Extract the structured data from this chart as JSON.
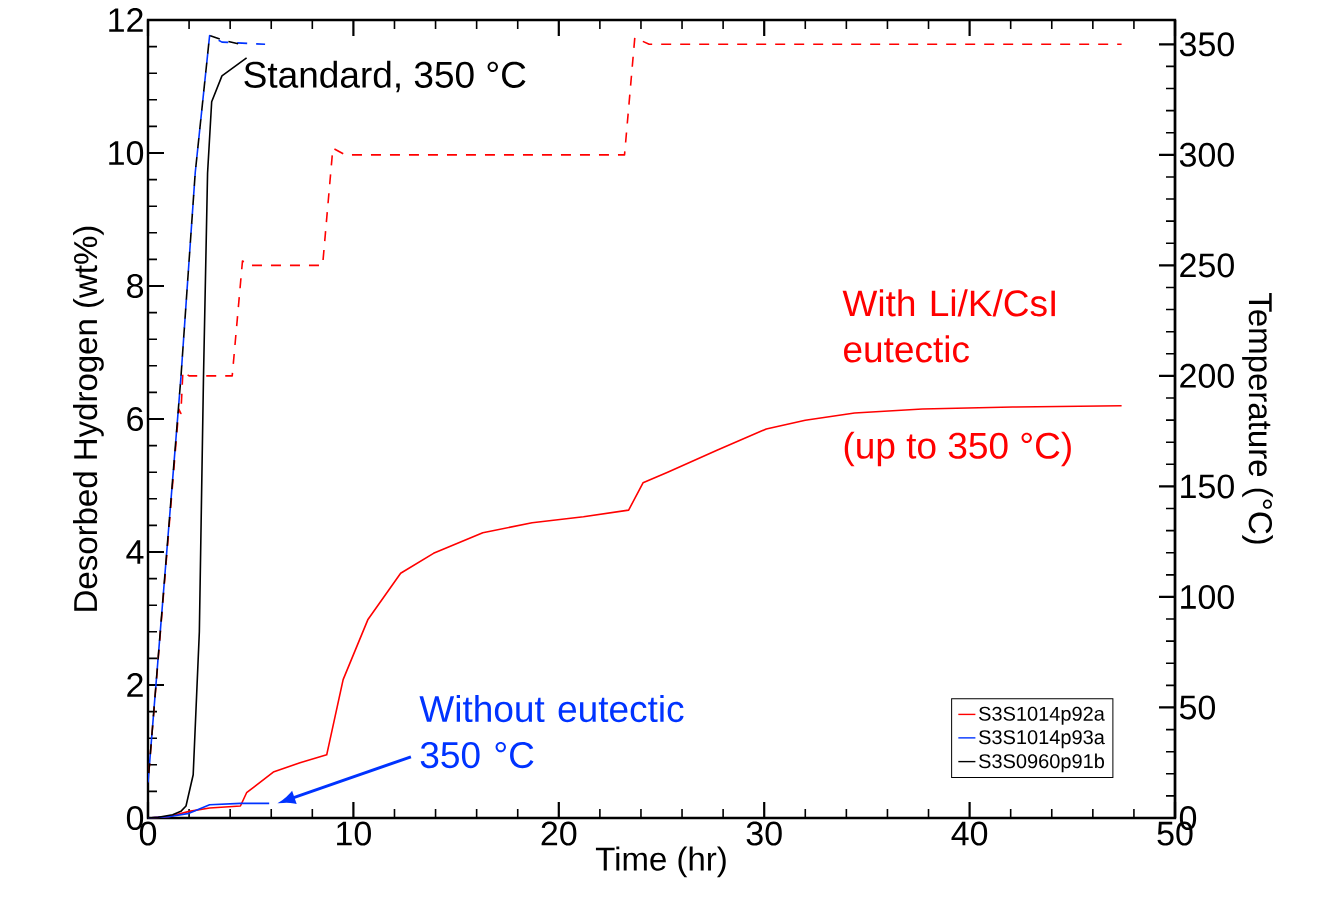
{
  "chart_data": {
    "type": "line",
    "xlabel": "Time  (hr)",
    "ylabel": "Desorbed Hydrogen   (wt%)",
    "y2label": "Temperature   (°C)",
    "xlim": [
      0,
      50
    ],
    "xticks": [
      0,
      10,
      20,
      30,
      40,
      50
    ],
    "ylim": [
      0,
      12
    ],
    "yticks": [
      0,
      2,
      4,
      6,
      8,
      10,
      12
    ],
    "y2lim": [
      0,
      361
    ],
    "y2ticks": [
      0,
      50,
      100,
      150,
      200,
      250,
      300,
      350
    ],
    "legend": "bottom right",
    "marker": "none",
    "annotations": [
      "Standard, 350 °C",
      "With Li/K/CsI eutectic",
      "(up to 350 °C)",
      "Without eutectic 350 °C"
    ],
    "series": [
      {
        "name": "S3S1014p92a",
        "color": "#ff0000",
        "x": [
          0,
          1,
          2,
          3,
          4.5,
          4.8,
          6.1,
          7.4,
          8.7,
          9.5,
          10.7,
          12.3,
          13.9,
          16.3,
          18.7,
          21.2,
          23.4,
          24.1,
          25.3,
          27.7,
          30.1,
          32,
          34.4,
          37.7,
          42.1,
          47.4
        ],
        "values": [
          0,
          0.02,
          0.1,
          0.15,
          0.18,
          0.38,
          0.69,
          0.83,
          0.95,
          2.08,
          2.98,
          3.68,
          3.98,
          4.29,
          4.44,
          4.53,
          4.63,
          5.04,
          5.2,
          5.53,
          5.85,
          5.98,
          6.09,
          6.15,
          6.18,
          6.2
        ]
      },
      {
        "name": "S3S1014p93a",
        "color": "#0033ff",
        "x": [
          0,
          1,
          2,
          3,
          4.5,
          5.9
        ],
        "values": [
          0,
          0.02,
          0.07,
          0.2,
          0.22,
          0.22
        ]
      },
      {
        "name": "S3S0960p91b",
        "color": "#000000",
        "x": [
          0,
          0.5,
          1.2,
          1.6,
          1.85,
          2.2,
          2.5,
          2.7,
          2.9,
          3.1,
          3.6,
          4.8
        ],
        "values": [
          0,
          0.01,
          0.05,
          0.1,
          0.18,
          0.65,
          2.8,
          6.6,
          9.7,
          10.77,
          11.16,
          11.43
        ]
      },
      {
        "color": "#ff0000",
        "axis": "y2",
        "line_style": "dashed",
        "x": [
          0,
          1.5,
          1.6,
          1.7,
          2.0,
          4.1,
          4.6,
          5.0,
          8.5,
          9.0,
          9.6,
          23.2,
          23.7,
          24.4,
          47.4
        ],
        "values": [
          16,
          185,
          183,
          202,
          200,
          200,
          252,
          250,
          250,
          303,
          300,
          300,
          353,
          350,
          350
        ]
      },
      {
        "color": "#0033ff",
        "axis": "y2",
        "line_style": "dashed",
        "x": [
          0,
          1.6,
          2.3,
          3,
          3.6,
          5.7
        ],
        "values": [
          16,
          199,
          292,
          354,
          351,
          350
        ]
      },
      {
        "color": "#000000",
        "axis": "y2",
        "line_style": "dashed",
        "x": [
          0,
          1.6,
          2.3,
          3,
          3.6,
          4.5
        ],
        "values": [
          16,
          199,
          292,
          354,
          352,
          350
        ]
      }
    ]
  }
}
